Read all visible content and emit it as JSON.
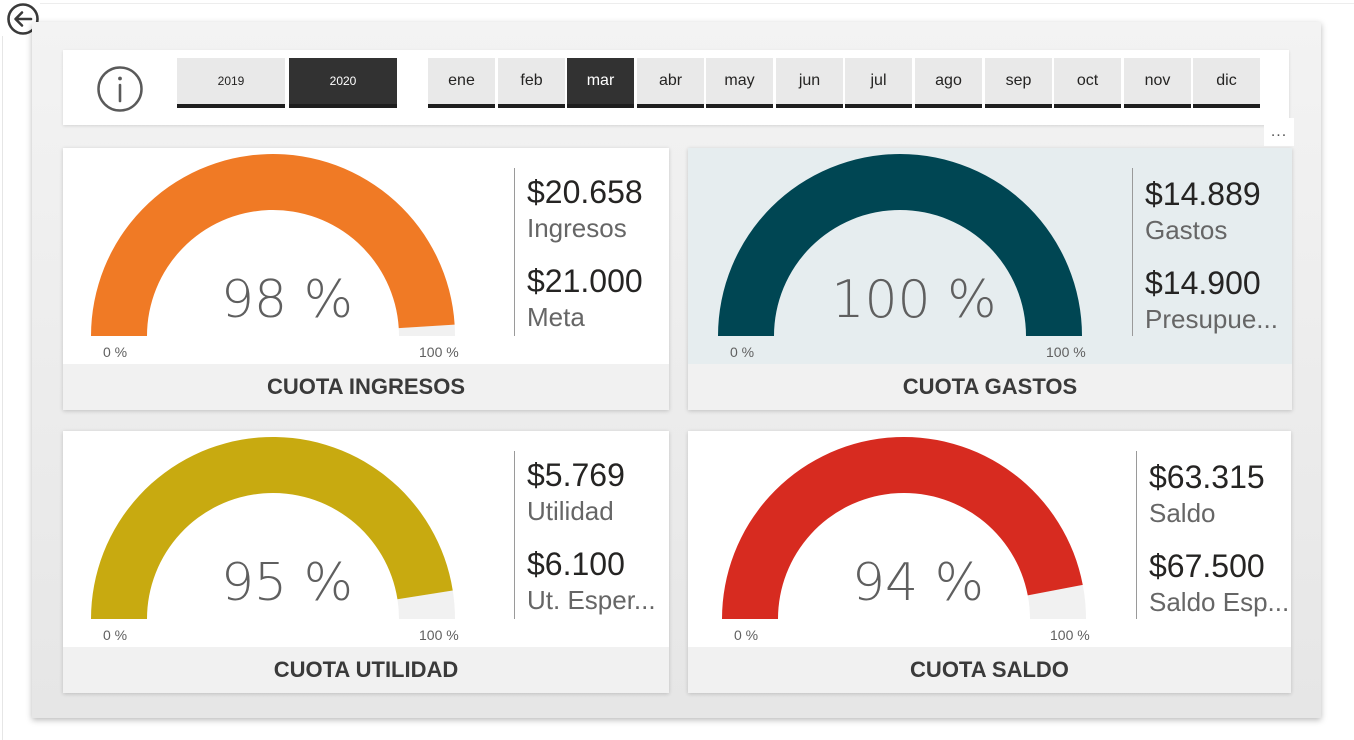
{
  "slicers": {
    "years": [
      "2019",
      "2020"
    ],
    "active_year": "2020",
    "months": [
      "ene",
      "feb",
      "mar",
      "abr",
      "may",
      "jun",
      "jul",
      "ago",
      "sep",
      "oct",
      "nov",
      "dic"
    ],
    "active_month": "mar",
    "more_label": "..."
  },
  "cards": [
    {
      "title": "CUOTA INGRESOS",
      "percent_label": "98 %",
      "percent": 98,
      "min_label": "0 %",
      "max_label": "100 %",
      "color": "#f07a25",
      "track_color": "#f1f1f1",
      "primary_value": "$20.658",
      "primary_label": "Ingresos",
      "target_value": "$21.000",
      "target_label": "Meta"
    },
    {
      "title": "CUOTA GASTOS",
      "percent_label": "100 %",
      "percent": 100,
      "min_label": "0 %",
      "max_label": "100 %",
      "color": "#004653",
      "track_color": "#f1f1f1",
      "primary_value": "$14.889",
      "primary_label": "Gastos",
      "target_value": "$14.900",
      "target_label": "Presupue..."
    },
    {
      "title": "CUOTA UTILIDAD",
      "percent_label": "95 %",
      "percent": 95,
      "min_label": "0 %",
      "max_label": "100 %",
      "color": "#c8aa10",
      "track_color": "#f1f1f1",
      "primary_value": "$5.769",
      "primary_label": "Utilidad",
      "target_value": "$6.100",
      "target_label": "Ut. Esper..."
    },
    {
      "title": "CUOTA SALDO",
      "percent_label": "94 %",
      "percent": 94,
      "min_label": "0 %",
      "max_label": "100 %",
      "color": "#d72b20",
      "track_color": "#f1f1f1",
      "primary_value": "$63.315",
      "primary_label": "Saldo",
      "target_value": "$67.500",
      "target_label": "Saldo Esp..."
    }
  ]
}
